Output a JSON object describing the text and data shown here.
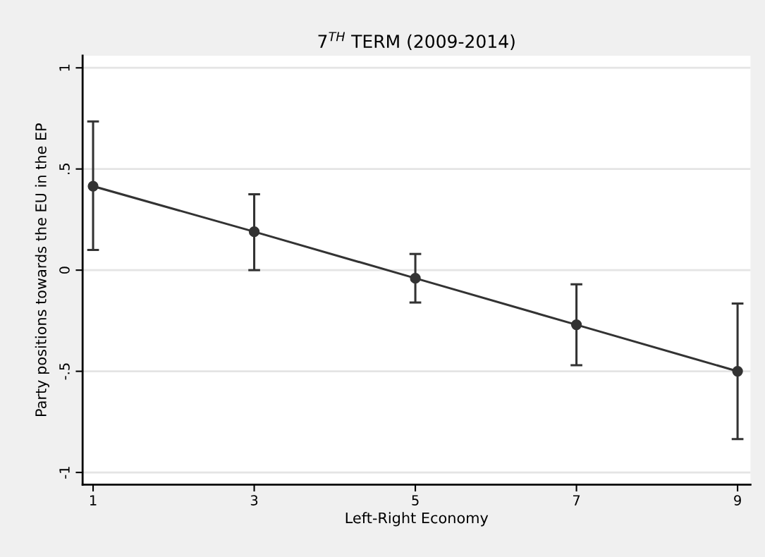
{
  "chart_data": {
    "type": "line",
    "title": "7$^{TH}$ TERM (2009-2014)",
    "xlabel": "Left-Right Economy",
    "ylabel": "Party positions towards the EU in the EP",
    "x": [
      1,
      3,
      5,
      7,
      9
    ],
    "series": [
      {
        "color": "#333333",
        "values": [
          0.415,
          0.19,
          -0.04,
          -0.27,
          -0.5
        ],
        "errors": [
          [
            0.1,
            0.735
          ],
          [
            0.0,
            0.375
          ],
          [
            -0.16,
            0.08
          ],
          [
            -0.47,
            -0.07
          ],
          [
            -0.835,
            -0.165
          ]
        ]
      }
    ],
    "xlim": [
      0.87,
      9.16
    ],
    "ylim": [
      -1.06,
      1.06
    ],
    "xticks": [
      1,
      3,
      5,
      7,
      9
    ],
    "yticks": [
      {
        "value": -1,
        "label": "-1"
      },
      {
        "value": -0.5,
        "label": "-.5"
      },
      {
        "value": 0,
        "label": "0"
      },
      {
        "value": 0.5,
        "label": ".5"
      },
      {
        "value": 1,
        "label": "1"
      }
    ],
    "grid": "y",
    "marker": "circle",
    "line_style": "solid"
  }
}
